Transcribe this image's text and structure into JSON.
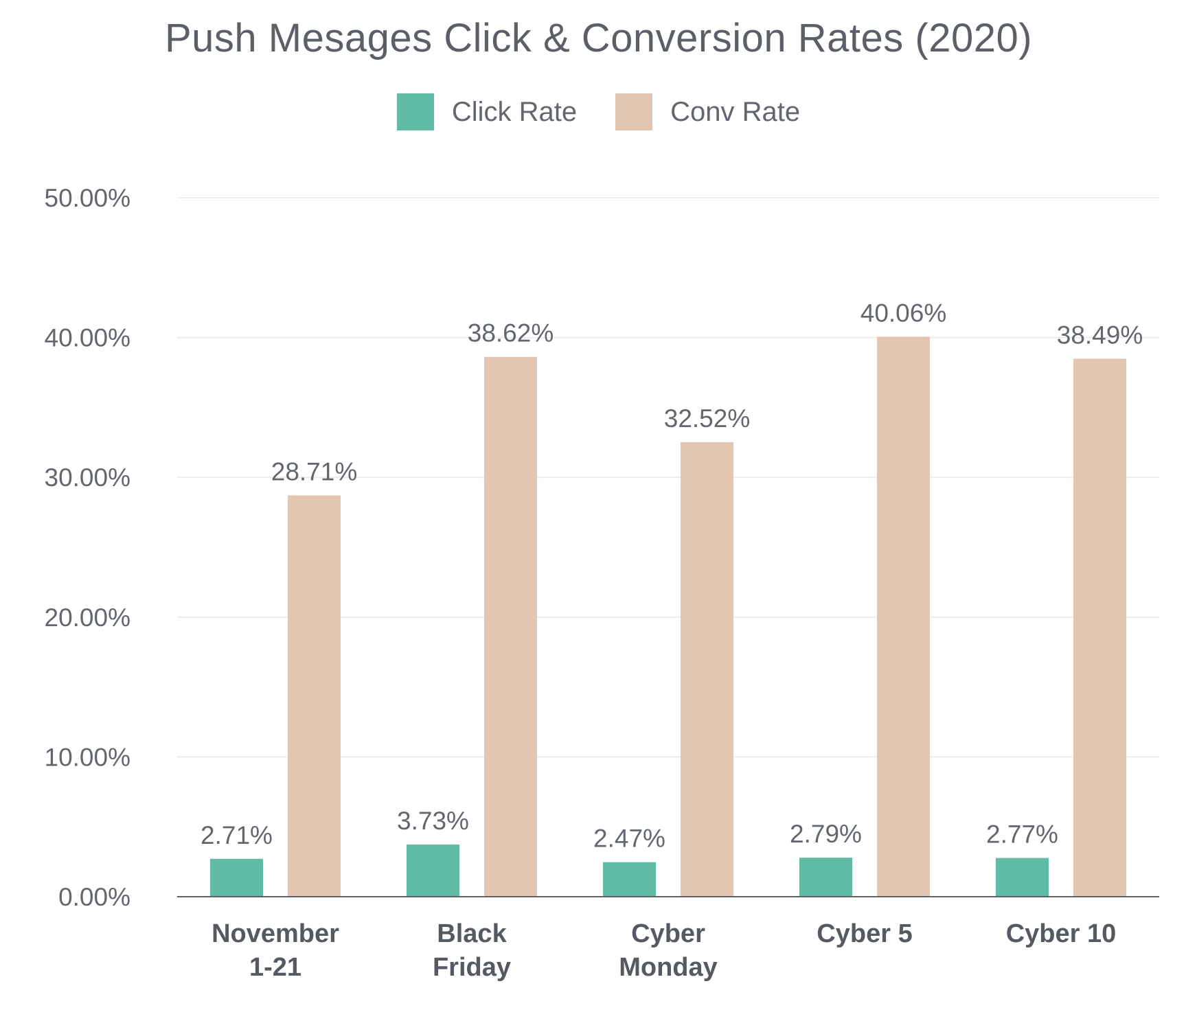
{
  "chart_data": {
    "type": "bar",
    "title": "Push Mesages Click & Conversion Rates (2020)",
    "categories": [
      [
        "November",
        "1-21"
      ],
      [
        "Black",
        "Friday"
      ],
      [
        "Cyber",
        "Monday"
      ],
      [
        "Cyber 5"
      ],
      [
        "Cyber 10"
      ]
    ],
    "series": [
      {
        "name": "Click Rate",
        "color": "#5fbba3",
        "values": [
          2.71,
          3.73,
          2.47,
          2.79,
          2.77
        ],
        "labels": [
          "2.71%",
          "3.73%",
          "2.47%",
          "2.79%",
          "2.77%"
        ]
      },
      {
        "name": "Conv Rate",
        "color": "#e3c6b1",
        "values": [
          28.71,
          38.62,
          32.52,
          40.06,
          38.49
        ],
        "labels": [
          "28.71%",
          "38.62%",
          "32.52%",
          "40.06%",
          "38.49%"
        ]
      }
    ],
    "yticks": [
      0,
      10,
      20,
      30,
      40,
      50
    ],
    "ytick_labels": [
      "0.00%",
      "10.00%",
      "20.00%",
      "30.00%",
      "40.00%",
      "50.00%"
    ],
    "ylim": [
      0,
      50
    ],
    "grid": true,
    "legend_position": "top-center"
  }
}
